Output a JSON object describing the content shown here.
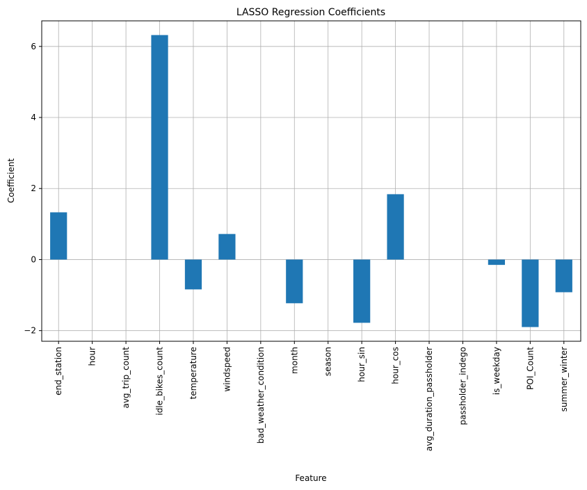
{
  "chart_data": {
    "type": "bar",
    "title": "LASSO Regression Coefficients",
    "xlabel": "Feature",
    "ylabel": "Coefficient",
    "categories": [
      "end_station",
      "hour",
      "avg_trip_count",
      "idle_bikes_count",
      "temperature",
      "windspeed",
      "bad_weather_condition",
      "month",
      "season",
      "hour_sin",
      "hour_cos",
      "avg_duration_passholder",
      "passholder_indego",
      "is_weekday",
      "POI_Count",
      "summer_winter"
    ],
    "values": [
      1.33,
      0.0,
      0.0,
      6.32,
      -0.84,
      0.72,
      0.0,
      -1.23,
      0.0,
      -1.78,
      1.84,
      0.0,
      0.0,
      -0.15,
      -1.9,
      -0.92
    ],
    "ylim": [
      -2.3,
      6.72
    ],
    "yticks": [
      -2,
      0,
      2,
      4,
      6
    ],
    "ytick_labels": [
      "−2",
      "0",
      "2",
      "4",
      "6"
    ],
    "grid": true,
    "bar_color": "#1f77b4",
    "grid_color": "#b0b0b0"
  }
}
